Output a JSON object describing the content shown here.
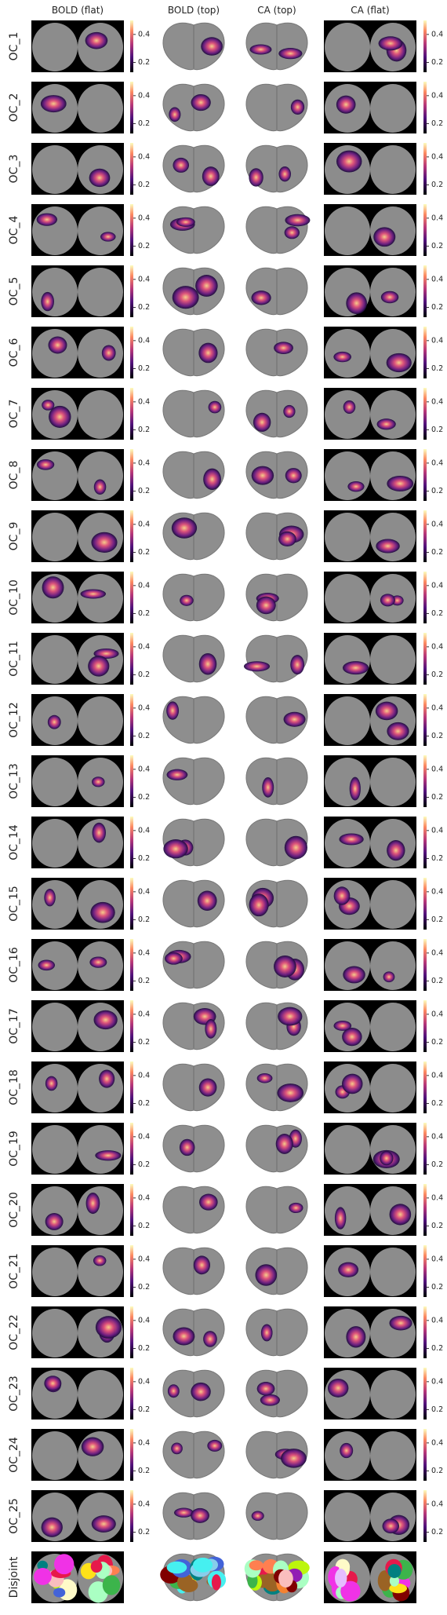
{
  "columns": [
    "BOLD (flat)",
    "BOLD (top)",
    "CA (top)",
    "CA (flat)"
  ],
  "rows": [
    "OC_1",
    "OC_2",
    "OC_3",
    "OC_4",
    "OC_5",
    "OC_6",
    "OC_7",
    "OC_8",
    "OC_9",
    "OC_10",
    "OC_11",
    "OC_12",
    "OC_13",
    "OC_14",
    "OC_15",
    "OC_16",
    "OC_17",
    "OC_18",
    "OC_19",
    "OC_20",
    "OC_21",
    "OC_22",
    "OC_23",
    "OC_24",
    "OC_25",
    "Disjoint"
  ],
  "colorbar": {
    "lim": [
      0.13,
      0.5
    ],
    "ticks": [
      0.2,
      0.4
    ]
  }
}
